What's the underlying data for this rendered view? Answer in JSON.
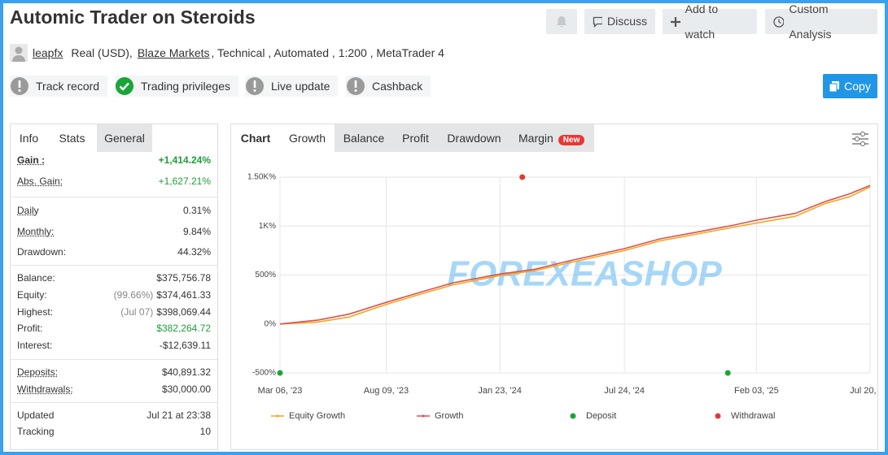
{
  "header": {
    "title": "Automic Trader on Steroids",
    "buttons": [
      "Discuss",
      "Add to watch",
      "Custom Analysis"
    ],
    "user": "leapfx",
    "account": "Real (USD),",
    "broker": "Blaze Markets",
    "details": ", Technical , Automated , 1:200 , MetaTrader 4",
    "copy": "Copy"
  },
  "badges": [
    "Track record",
    "Trading privileges",
    "Live update",
    "Cashback"
  ],
  "left_tabs": [
    "Info",
    "Stats",
    "General"
  ],
  "stats": {
    "groups": [
      {
        "rows": [
          {
            "label": "Gain :",
            "value": "+1,414.24%"
          },
          {
            "label": "Abs. Gain:",
            "value": "+1,627.21%"
          }
        ]
      },
      {
        "rows": [
          {
            "label": "Daily",
            "value": "0.31%"
          },
          {
            "label": "Monthly:",
            "value": "9.84%"
          },
          {
            "label": "Drawdown:",
            "value": "44.32%"
          }
        ]
      },
      {
        "rows": [
          {
            "label": "Balance:",
            "value": "$375,756.78"
          },
          {
            "label": "Equity:",
            "note": "(99.66%)",
            "value": "$374,461.33"
          },
          {
            "label": "Highest:",
            "note": "(Jul 07)",
            "value": "$398,069.44"
          },
          {
            "label": "Profit:",
            "value": "$382,264.72"
          },
          {
            "label": "Interest:",
            "value": "-$12,639.11"
          }
        ]
      },
      {
        "rows": [
          {
            "label": "Deposits:",
            "value": "$40,891.32"
          },
          {
            "label": "Withdrawals:",
            "value": "$30,000.00"
          }
        ]
      },
      {
        "rows": [
          {
            "label": "Updated",
            "value": "Jul 21 at 23:38"
          },
          {
            "label": "Tracking",
            "value": "10"
          }
        ]
      }
    ]
  },
  "chart_tabs": [
    "Chart",
    "Growth",
    "Balance",
    "Profit",
    "Drawdown",
    "Margin"
  ],
  "new_badge": "New",
  "watermark": "FOREXEASHOP",
  "chart_data": {
    "type": "line",
    "ylim": [
      -500,
      1500
    ],
    "yticks": [
      {
        "value": -500,
        "label": "-500%"
      },
      {
        "value": 0,
        "label": "0%"
      },
      {
        "value": 500,
        "label": "500%"
      },
      {
        "value": 1000,
        "label": "1K%"
      },
      {
        "value": 1500,
        "label": "1.50K%"
      }
    ],
    "xlim": [
      "2023-03-06",
      "2025-07-20"
    ],
    "xticks": [
      {
        "value": "2023-03-06",
        "label": "Mar 06, '23"
      },
      {
        "value": "2023-08-09",
        "label": "Aug 09, '23"
      },
      {
        "value": "2024-01-23",
        "label": "Jan 23, '24"
      },
      {
        "value": "2024-07-24",
        "label": "Jul 24, '24"
      },
      {
        "value": "2025-02-03",
        "label": "Feb 03, '25"
      },
      {
        "value": "2025-07-20",
        "label": "Jul 20, '25"
      }
    ],
    "grid": true,
    "series": [
      {
        "name": "Equity Growth",
        "color": "#f5a623",
        "x": [
          "2023-03-06",
          "2023-05-01",
          "2023-06-15",
          "2023-08-09",
          "2023-10-01",
          "2023-11-15",
          "2024-01-23",
          "2024-03-15",
          "2024-05-01",
          "2024-07-24",
          "2024-09-15",
          "2024-11-01",
          "2025-01-01",
          "2025-02-03",
          "2025-04-01",
          "2025-05-15",
          "2025-06-20",
          "2025-07-20"
        ],
        "values": [
          0,
          20,
          70,
          200,
          310,
          400,
          495,
          545,
          620,
          750,
          850,
          910,
          990,
          1030,
          1100,
          1230,
          1300,
          1400
        ]
      },
      {
        "name": "Growth",
        "color": "#d9534f",
        "x": [
          "2023-03-06",
          "2023-05-01",
          "2023-06-15",
          "2023-08-09",
          "2023-10-01",
          "2023-11-15",
          "2024-01-23",
          "2024-03-15",
          "2024-05-01",
          "2024-07-24",
          "2024-09-15",
          "2024-11-01",
          "2025-01-01",
          "2025-02-03",
          "2025-04-01",
          "2025-05-15",
          "2025-06-20",
          "2025-07-20"
        ],
        "values": [
          0,
          40,
          100,
          220,
          330,
          420,
          510,
          560,
          640,
          770,
          870,
          930,
          1010,
          1060,
          1130,
          1250,
          1330,
          1414.24
        ]
      },
      {
        "name": "Deposit",
        "color": "#1aa53a",
        "kind": "point",
        "x": [
          "2023-03-06",
          "2024-12-23"
        ],
        "values": [
          -500,
          -500
        ]
      },
      {
        "name": "Withdrawal",
        "color": "#e53935",
        "kind": "point",
        "x": [
          "2024-02-25"
        ],
        "values": [
          1500
        ]
      }
    ]
  }
}
